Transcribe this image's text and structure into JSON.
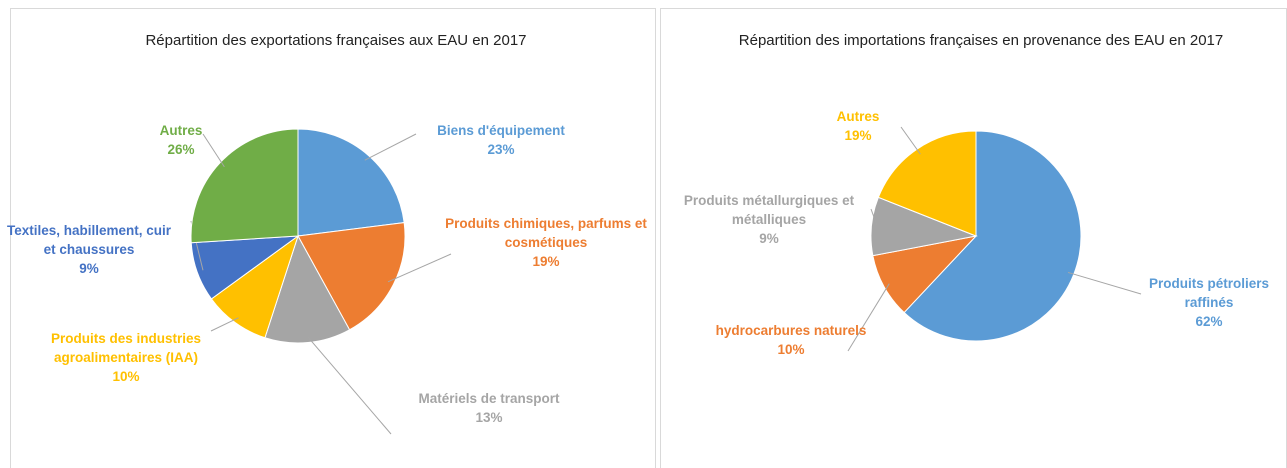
{
  "chart_data": [
    {
      "type": "pie",
      "title": "Répartition des exportations françaises aux EAU en 2017",
      "categories": [
        "Biens d'équipement",
        "Produits chimiques, parfums et cosmétiques",
        "Matériels de transport",
        "Produits des industries agroalimentaires (IAA)",
        "Textiles, habillement, cuir et chaussures",
        "Autres"
      ],
      "values": [
        23,
        19,
        13,
        10,
        9,
        26
      ],
      "value_labels": [
        "23%",
        "19%",
        "13%",
        "10%",
        "9%",
        "26%"
      ],
      "colors": [
        "#5b9bd5",
        "#ed7d31",
        "#a5a5a5",
        "#ffc000",
        "#4472c4",
        "#70ad47"
      ]
    },
    {
      "type": "pie",
      "title": "Répartition des importations françaises en provenance des EAU en 2017",
      "categories": [
        "Produits pétroliers raffinés",
        "hydrocarbures naturels",
        "Produits métallurgiques et métalliques",
        "Autres"
      ],
      "values": [
        62,
        10,
        9,
        19
      ],
      "value_labels": [
        "62%",
        "10%",
        "9%",
        "19%"
      ],
      "colors": [
        "#5b9bd5",
        "#ed7d31",
        "#a5a5a5",
        "#ffc000"
      ]
    }
  ]
}
